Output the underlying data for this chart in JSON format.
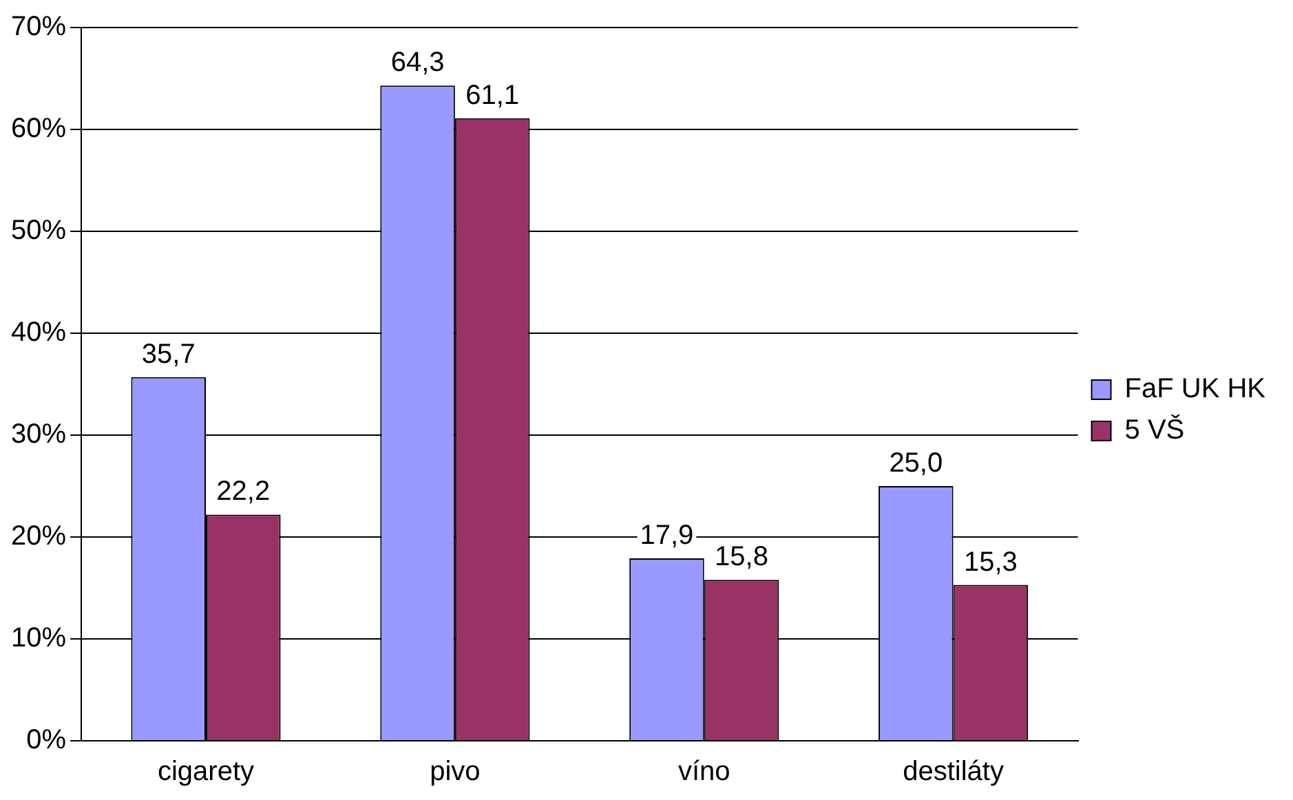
{
  "chart_data": {
    "type": "bar",
    "categories": [
      "cigarety",
      "pivo",
      "víno",
      "destiláty"
    ],
    "series": [
      {
        "name": "FaF UK HK",
        "color": "#9999ff",
        "values": [
          35.7,
          64.3,
          17.9,
          25.0
        ],
        "value_labels": [
          "35,7",
          "64,3",
          "17,9",
          "25,0"
        ]
      },
      {
        "name": "5 VŠ",
        "color": "#993366",
        "values": [
          22.2,
          61.1,
          15.8,
          15.3
        ],
        "value_labels": [
          "22,2",
          "61,1",
          "15,8",
          "15,3"
        ]
      }
    ],
    "ylim": [
      0,
      70
    ],
    "yticks": [
      {
        "value": 0,
        "label": "0%"
      },
      {
        "value": 10,
        "label": "10%"
      },
      {
        "value": 20,
        "label": "20%"
      },
      {
        "value": 30,
        "label": "30%"
      },
      {
        "value": 40,
        "label": "40%"
      },
      {
        "value": 50,
        "label": "50%"
      },
      {
        "value": 60,
        "label": "60%"
      },
      {
        "value": 70,
        "label": "70%"
      }
    ],
    "grid": "y",
    "legend": "right"
  }
}
